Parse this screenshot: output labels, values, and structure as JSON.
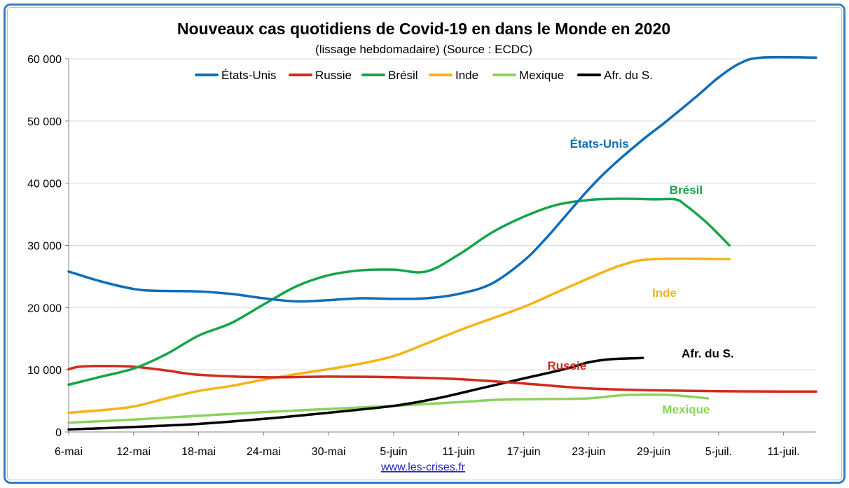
{
  "chart_data": {
    "type": "line",
    "title": "Nouveaux cas quotidiens de Covid-19 en dans le Monde en 2020",
    "subtitle": "(lissage hebdomadaire) (Source : ECDC)",
    "source": "www.les-crises.fr",
    "xlabel": "",
    "ylabel": "",
    "ylim": [
      0,
      60000
    ],
    "yticks": [
      0,
      10000,
      20000,
      30000,
      40000,
      50000,
      60000
    ],
    "ytick_labels": [
      "0",
      "10 000",
      "20 000",
      "30 000",
      "40 000",
      "50 000",
      "60 000"
    ],
    "xlim": [
      0,
      69
    ],
    "xticks": [
      0,
      6,
      12,
      18,
      24,
      30,
      36,
      42,
      48,
      54,
      60,
      66
    ],
    "xtick_labels": [
      "6-mai",
      "12-mai",
      "18-mai",
      "24-mai",
      "30-mai",
      "5-juin",
      "11-juin",
      "17-juin",
      "23-juin",
      "29-juin",
      "5-juil.",
      "11-juil."
    ],
    "grid": true,
    "legend_position": "top",
    "series": [
      {
        "name": "États-Unis",
        "color": "#0e6db8",
        "label": "États-Unis",
        "label_at": [
          49,
          45700
        ],
        "points": [
          [
            0,
            25800
          ],
          [
            3,
            24200
          ],
          [
            6,
            23000
          ],
          [
            8,
            22700
          ],
          [
            12,
            22600
          ],
          [
            15,
            22200
          ],
          [
            18,
            21500
          ],
          [
            21,
            21000
          ],
          [
            24,
            21200
          ],
          [
            27,
            21500
          ],
          [
            30,
            21400
          ],
          [
            33,
            21500
          ],
          [
            36,
            22200
          ],
          [
            39,
            23800
          ],
          [
            42,
            27500
          ],
          [
            44,
            31000
          ],
          [
            46,
            35000
          ],
          [
            48,
            39000
          ],
          [
            50,
            42500
          ],
          [
            53,
            47000
          ],
          [
            55,
            49700
          ],
          [
            58,
            54000
          ],
          [
            60,
            57000
          ],
          [
            62,
            59300
          ],
          [
            64,
            60200
          ],
          [
            69,
            60200
          ]
        ]
      },
      {
        "name": "Russie",
        "color": "#d42a1e",
        "label": "Russie",
        "label_at": [
          46,
          10000
        ],
        "points": [
          [
            0,
            10100
          ],
          [
            1,
            10500
          ],
          [
            3,
            10600
          ],
          [
            6,
            10500
          ],
          [
            9,
            9900
          ],
          [
            12,
            9200
          ],
          [
            18,
            8800
          ],
          [
            24,
            8900
          ],
          [
            30,
            8800
          ],
          [
            36,
            8500
          ],
          [
            42,
            7800
          ],
          [
            48,
            7000
          ],
          [
            54,
            6700
          ],
          [
            60,
            6550
          ],
          [
            66,
            6500
          ],
          [
            69,
            6500
          ]
        ]
      },
      {
        "name": "Brésil",
        "color": "#16a44a",
        "label": "Brésil",
        "label_at": [
          57,
          38300
        ],
        "points": [
          [
            0,
            7600
          ],
          [
            3,
            8900
          ],
          [
            6,
            10200
          ],
          [
            9,
            12500
          ],
          [
            12,
            15500
          ],
          [
            15,
            17500
          ],
          [
            18,
            20500
          ],
          [
            21,
            23400
          ],
          [
            24,
            25200
          ],
          [
            27,
            26000
          ],
          [
            30,
            26100
          ],
          [
            33,
            25800
          ],
          [
            36,
            28500
          ],
          [
            39,
            32000
          ],
          [
            42,
            34600
          ],
          [
            45,
            36500
          ],
          [
            48,
            37300
          ],
          [
            51,
            37500
          ],
          [
            54,
            37400
          ],
          [
            56,
            37400
          ],
          [
            57,
            36400
          ],
          [
            59,
            33500
          ],
          [
            61,
            30000
          ]
        ]
      },
      {
        "name": "Inde",
        "color": "#f5b317",
        "label": "Inde",
        "label_at": [
          55,
          21700
        ],
        "points": [
          [
            0,
            3100
          ],
          [
            3,
            3500
          ],
          [
            6,
            4100
          ],
          [
            9,
            5400
          ],
          [
            12,
            6600
          ],
          [
            15,
            7400
          ],
          [
            18,
            8400
          ],
          [
            21,
            9300
          ],
          [
            24,
            10100
          ],
          [
            27,
            11000
          ],
          [
            30,
            12200
          ],
          [
            33,
            14200
          ],
          [
            36,
            16300
          ],
          [
            39,
            18200
          ],
          [
            42,
            20100
          ],
          [
            45,
            22400
          ],
          [
            48,
            24700
          ],
          [
            51,
            26800
          ],
          [
            54,
            27800
          ],
          [
            61,
            27800
          ]
        ]
      },
      {
        "name": "Mexique",
        "color": "#8bd35e",
        "label": "Mexique",
        "label_at": [
          57,
          3000
        ],
        "points": [
          [
            0,
            1500
          ],
          [
            6,
            2000
          ],
          [
            12,
            2600
          ],
          [
            18,
            3200
          ],
          [
            24,
            3700
          ],
          [
            30,
            4200
          ],
          [
            36,
            4800
          ],
          [
            40,
            5200
          ],
          [
            44,
            5300
          ],
          [
            48,
            5400
          ],
          [
            51,
            5900
          ],
          [
            54,
            6000
          ],
          [
            56,
            5900
          ],
          [
            59,
            5400
          ]
        ]
      },
      {
        "name": "Afr. du S.",
        "color": "#000000",
        "label": "Afr. du S.",
        "label_at": [
          59,
          12000
        ],
        "points": [
          [
            0,
            400
          ],
          [
            6,
            800
          ],
          [
            12,
            1300
          ],
          [
            18,
            2100
          ],
          [
            24,
            3100
          ],
          [
            30,
            4200
          ],
          [
            34,
            5400
          ],
          [
            38,
            7000
          ],
          [
            42,
            8600
          ],
          [
            46,
            10200
          ],
          [
            48,
            11200
          ],
          [
            50,
            11700
          ],
          [
            53,
            11900
          ]
        ]
      }
    ]
  }
}
